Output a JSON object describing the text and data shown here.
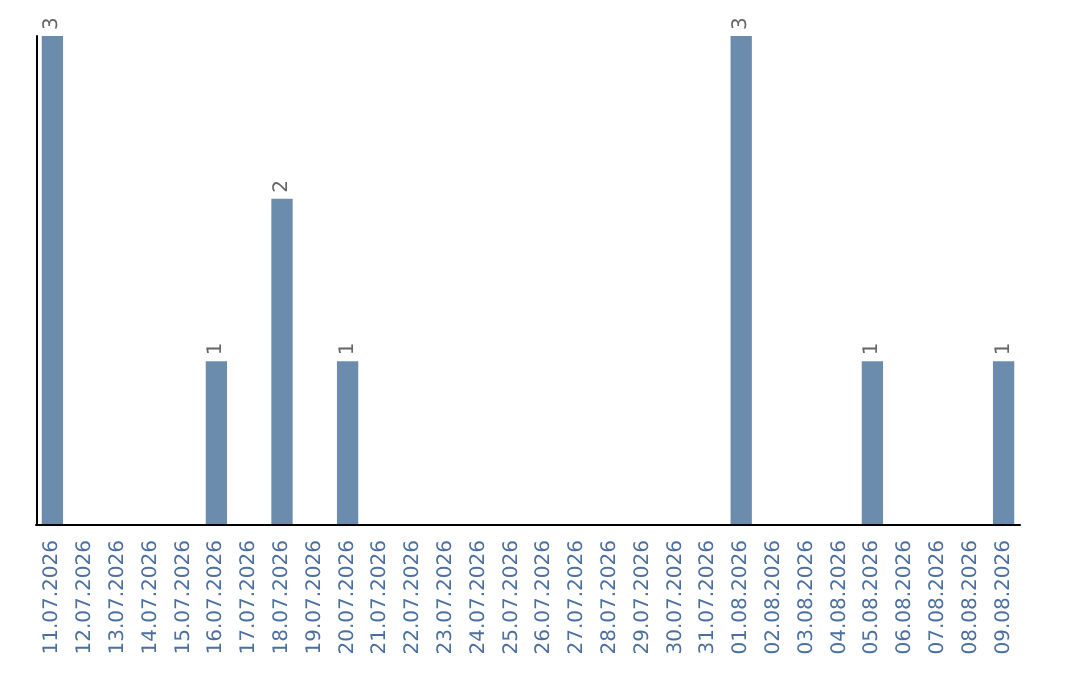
{
  "chart_data": {
    "type": "bar",
    "categories": [
      "11.07.2026",
      "12.07.2026",
      "13.07.2026",
      "14.07.2026",
      "15.07.2026",
      "16.07.2026",
      "17.07.2026",
      "18.07.2026",
      "19.07.2026",
      "20.07.2026",
      "21.07.2026",
      "22.07.2026",
      "23.07.2026",
      "24.07.2026",
      "25.07.2026",
      "26.07.2026",
      "27.07.2026",
      "28.07.2026",
      "29.07.2026",
      "30.07.2026",
      "31.07.2026",
      "01.08.2026",
      "02.08.2026",
      "03.08.2026",
      "04.08.2026",
      "05.08.2026",
      "06.08.2026",
      "07.08.2026",
      "08.08.2026",
      "09.08.2026"
    ],
    "values": [
      3,
      0,
      0,
      0,
      0,
      1,
      0,
      2,
      0,
      1,
      0,
      0,
      0,
      0,
      0,
      0,
      0,
      0,
      0,
      0,
      0,
      3,
      0,
      0,
      0,
      1,
      0,
      0,
      0,
      1
    ],
    "value_labels": [
      "3",
      null,
      null,
      null,
      null,
      "1",
      null,
      "2",
      null,
      "1",
      null,
      null,
      null,
      null,
      null,
      null,
      null,
      null,
      null,
      null,
      null,
      "3",
      null,
      null,
      null,
      "1",
      null,
      null,
      null,
      "1"
    ],
    "color": "#6b8cac",
    "tick_labels": "x",
    "grid": false
  }
}
